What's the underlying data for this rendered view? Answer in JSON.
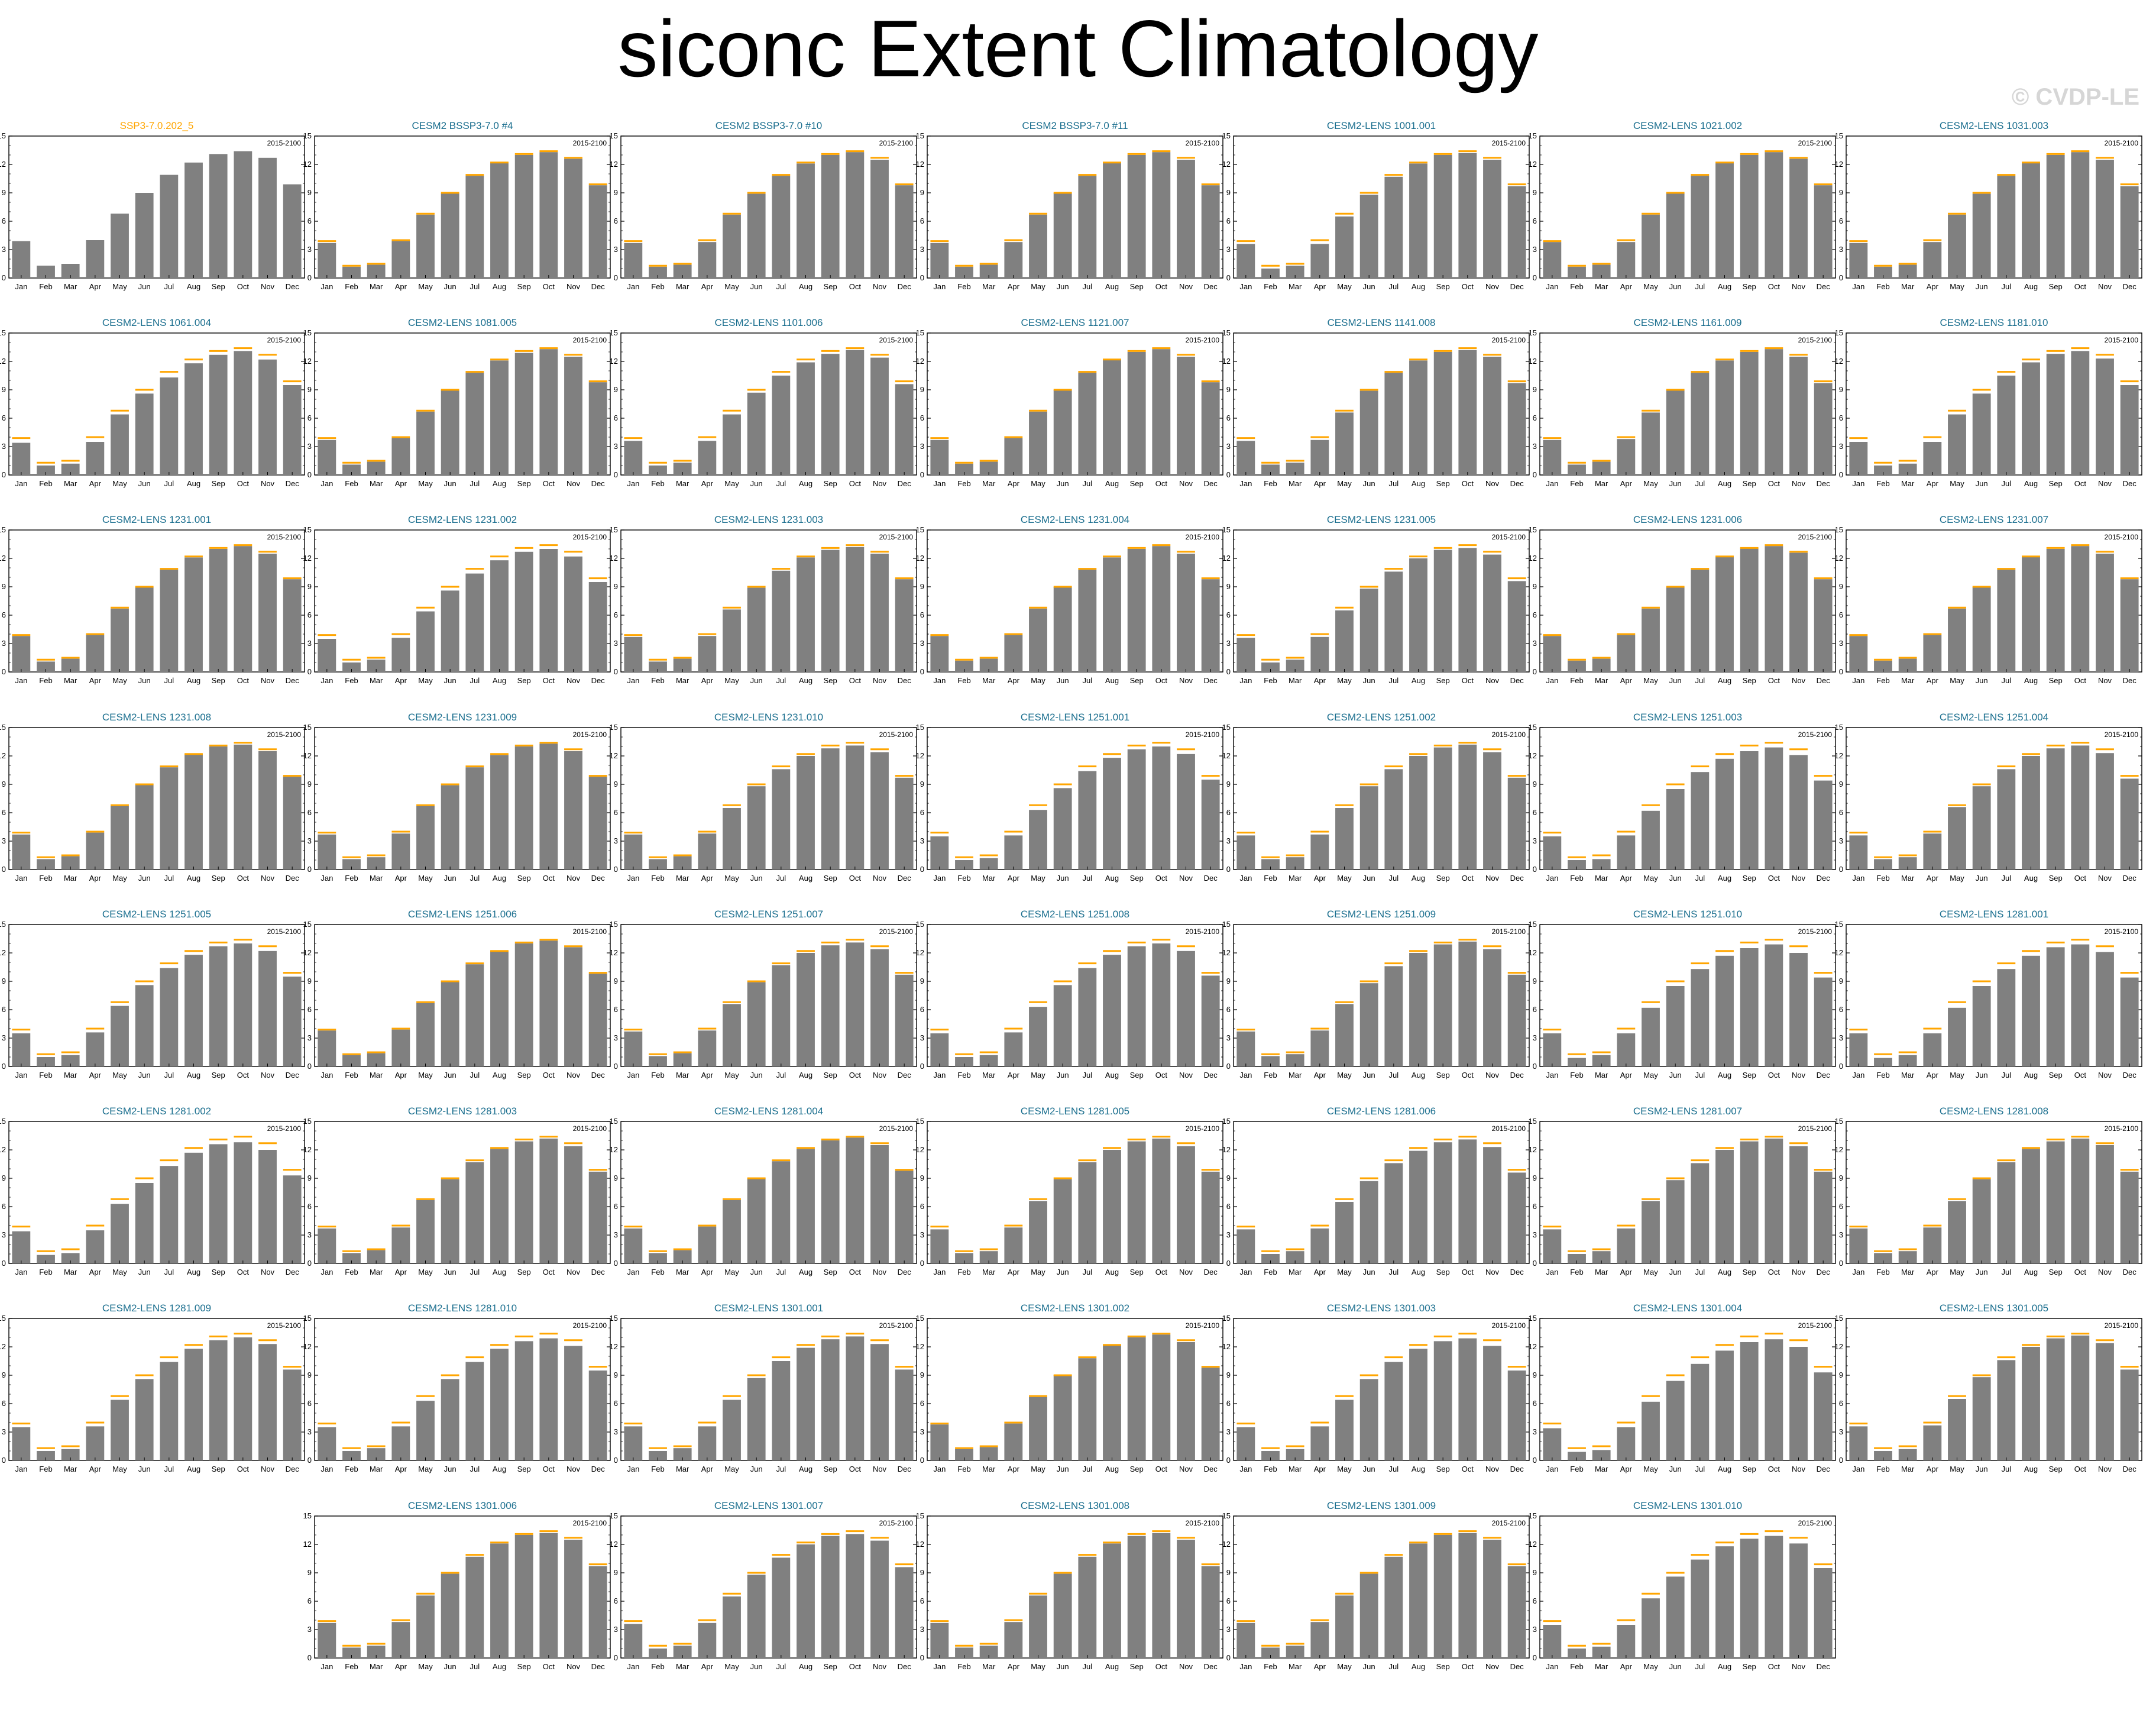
{
  "title": "siconc Extent Climatology",
  "watermark": "© CVDP-LE",
  "colors": {
    "bar": "#808080",
    "reference": "#ffa500",
    "model_title": "#1a6e8e",
    "reference_title": "#ffa500"
  },
  "chart_data": {
    "type": "bar",
    "categories": [
      "Jan",
      "Feb",
      "Mar",
      "Apr",
      "May",
      "Jun",
      "Jul",
      "Aug",
      "Sep",
      "Oct",
      "Nov",
      "Dec"
    ],
    "ylim": [
      0,
      15
    ],
    "yticks": [
      0,
      3,
      6,
      9,
      12,
      15
    ],
    "period_label": "2015-2100",
    "reference_values": [
      3.9,
      1.3,
      1.5,
      4.0,
      6.8,
      9.0,
      10.9,
      12.2,
      13.1,
      13.4,
      12.7,
      9.9
    ],
    "panels": [
      {
        "name": "SSP3-7.0.202_5",
        "values": [
          3.9,
          1.3,
          1.5,
          4.0,
          6.8,
          9.0,
          10.9,
          12.2,
          13.1,
          13.4,
          12.7,
          9.9
        ],
        "is_reference": true
      },
      {
        "name": "CESM2 BSSP3-7.0 #4",
        "values": [
          3.7,
          1.2,
          1.4,
          3.9,
          6.7,
          9.0,
          10.8,
          12.2,
          13.0,
          13.3,
          12.6,
          9.8
        ]
      },
      {
        "name": "CESM2 BSSP3-7.0 #10",
        "values": [
          3.7,
          1.2,
          1.4,
          3.8,
          6.7,
          8.9,
          10.8,
          12.1,
          13.0,
          13.3,
          12.5,
          9.8
        ]
      },
      {
        "name": "CESM2 BSSP3-7.0 #11",
        "values": [
          3.7,
          1.2,
          1.4,
          3.8,
          6.7,
          9.0,
          10.8,
          12.2,
          13.0,
          13.3,
          12.5,
          9.8
        ]
      },
      {
        "name": "CESM2-LENS 1001.001",
        "values": [
          3.6,
          1.0,
          1.3,
          3.6,
          6.5,
          8.8,
          10.7,
          12.1,
          13.0,
          13.2,
          12.5,
          9.7
        ]
      },
      {
        "name": "CESM2-LENS 1021.002",
        "values": [
          3.8,
          1.2,
          1.4,
          3.8,
          6.7,
          9.0,
          10.8,
          12.2,
          13.0,
          13.3,
          12.6,
          9.8
        ]
      },
      {
        "name": "CESM2-LENS 1031.003",
        "values": [
          3.7,
          1.2,
          1.4,
          3.8,
          6.7,
          8.9,
          10.8,
          12.2,
          13.0,
          13.3,
          12.5,
          9.7
        ]
      },
      {
        "name": "CESM2-LENS 1061.004",
        "values": [
          3.4,
          1.0,
          1.2,
          3.5,
          6.4,
          8.6,
          10.3,
          11.8,
          12.7,
          13.1,
          12.2,
          9.5
        ]
      },
      {
        "name": "CESM2-LENS 1081.005",
        "values": [
          3.7,
          1.1,
          1.4,
          3.9,
          6.7,
          9.0,
          10.8,
          12.1,
          12.9,
          13.3,
          12.5,
          9.8
        ]
      },
      {
        "name": "CESM2-LENS 1101.006",
        "values": [
          3.6,
          1.0,
          1.3,
          3.6,
          6.4,
          8.7,
          10.5,
          11.9,
          12.8,
          13.2,
          12.4,
          9.6
        ]
      },
      {
        "name": "CESM2-LENS 1121.007",
        "values": [
          3.7,
          1.2,
          1.4,
          3.9,
          6.7,
          9.0,
          10.8,
          12.2,
          13.0,
          13.3,
          12.5,
          9.8
        ]
      },
      {
        "name": "CESM2-LENS 1141.008",
        "values": [
          3.6,
          1.1,
          1.3,
          3.7,
          6.6,
          8.9,
          10.8,
          12.1,
          13.0,
          13.2,
          12.5,
          9.7
        ]
      },
      {
        "name": "CESM2-LENS 1161.009",
        "values": [
          3.7,
          1.1,
          1.4,
          3.8,
          6.6,
          9.0,
          10.8,
          12.1,
          13.0,
          13.3,
          12.5,
          9.7
        ]
      },
      {
        "name": "CESM2-LENS 1181.010",
        "values": [
          3.5,
          1.0,
          1.2,
          3.5,
          6.4,
          8.6,
          10.5,
          11.9,
          12.8,
          13.1,
          12.3,
          9.5
        ]
      },
      {
        "name": "CESM2-LENS 1231.001",
        "values": [
          3.8,
          1.1,
          1.4,
          3.9,
          6.7,
          9.0,
          10.8,
          12.1,
          13.0,
          13.3,
          12.5,
          9.8
        ]
      },
      {
        "name": "CESM2-LENS 1231.002",
        "values": [
          3.5,
          1.0,
          1.3,
          3.6,
          6.4,
          8.6,
          10.4,
          11.8,
          12.7,
          13.0,
          12.2,
          9.5
        ]
      },
      {
        "name": "CESM2-LENS 1231.003",
        "values": [
          3.7,
          1.1,
          1.4,
          3.8,
          6.6,
          8.9,
          10.7,
          12.1,
          12.9,
          13.2,
          12.5,
          9.8
        ]
      },
      {
        "name": "CESM2-LENS 1231.004",
        "values": [
          3.8,
          1.2,
          1.4,
          3.9,
          6.7,
          9.0,
          10.8,
          12.1,
          13.0,
          13.3,
          12.5,
          9.8
        ]
      },
      {
        "name": "CESM2-LENS 1231.005",
        "values": [
          3.6,
          1.0,
          1.3,
          3.7,
          6.5,
          8.8,
          10.6,
          12.0,
          12.9,
          13.1,
          12.4,
          9.6
        ]
      },
      {
        "name": "CESM2-LENS 1231.006",
        "values": [
          3.8,
          1.2,
          1.4,
          3.9,
          6.7,
          9.0,
          10.8,
          12.2,
          13.1,
          13.3,
          12.6,
          9.8
        ]
      },
      {
        "name": "CESM2-LENS 1231.007",
        "values": [
          3.8,
          1.2,
          1.4,
          3.9,
          6.7,
          9.0,
          10.8,
          12.2,
          13.0,
          13.3,
          12.5,
          9.8
        ]
      },
      {
        "name": "CESM2-LENS 1231.008",
        "values": [
          3.7,
          1.1,
          1.4,
          3.9,
          6.7,
          9.0,
          10.8,
          12.2,
          13.0,
          13.2,
          12.5,
          9.8
        ]
      },
      {
        "name": "CESM2-LENS 1231.009",
        "values": [
          3.7,
          1.1,
          1.3,
          3.8,
          6.7,
          8.9,
          10.8,
          12.1,
          13.0,
          13.3,
          12.5,
          9.8
        ]
      },
      {
        "name": "CESM2-LENS 1231.010",
        "values": [
          3.7,
          1.1,
          1.4,
          3.8,
          6.5,
          8.8,
          10.6,
          12.0,
          12.8,
          13.1,
          12.4,
          9.7
        ]
      },
      {
        "name": "CESM2-LENS 1251.001",
        "values": [
          3.5,
          1.0,
          1.2,
          3.6,
          6.3,
          8.6,
          10.4,
          11.8,
          12.7,
          13.0,
          12.2,
          9.5
        ]
      },
      {
        "name": "CESM2-LENS 1251.002",
        "values": [
          3.6,
          1.1,
          1.3,
          3.7,
          6.5,
          8.8,
          10.6,
          12.0,
          12.9,
          13.2,
          12.4,
          9.7
        ]
      },
      {
        "name": "CESM2-LENS 1251.003",
        "values": [
          3.5,
          1.0,
          1.1,
          3.6,
          6.2,
          8.5,
          10.3,
          11.7,
          12.5,
          12.9,
          12.1,
          9.4
        ]
      },
      {
        "name": "CESM2-LENS 1251.004",
        "values": [
          3.6,
          1.1,
          1.3,
          3.8,
          6.6,
          8.8,
          10.6,
          12.0,
          12.8,
          13.1,
          12.3,
          9.6
        ]
      },
      {
        "name": "CESM2-LENS 1251.005",
        "values": [
          3.5,
          1.0,
          1.2,
          3.6,
          6.4,
          8.6,
          10.4,
          11.8,
          12.7,
          13.0,
          12.2,
          9.5
        ]
      },
      {
        "name": "CESM2-LENS 1251.006",
        "values": [
          3.8,
          1.2,
          1.4,
          3.9,
          6.7,
          9.0,
          10.8,
          12.2,
          13.0,
          13.3,
          12.6,
          9.8
        ]
      },
      {
        "name": "CESM2-LENS 1251.007",
        "values": [
          3.7,
          1.1,
          1.4,
          3.8,
          6.6,
          8.9,
          10.7,
          12.0,
          12.8,
          13.1,
          12.4,
          9.7
        ]
      },
      {
        "name": "CESM2-LENS 1251.008",
        "values": [
          3.5,
          1.0,
          1.2,
          3.6,
          6.3,
          8.6,
          10.4,
          11.8,
          12.7,
          13.0,
          12.2,
          9.6
        ]
      },
      {
        "name": "CESM2-LENS 1251.009",
        "values": [
          3.7,
          1.1,
          1.3,
          3.8,
          6.6,
          8.8,
          10.6,
          12.0,
          12.9,
          13.2,
          12.4,
          9.7
        ]
      },
      {
        "name": "CESM2-LENS 1251.010",
        "values": [
          3.5,
          0.9,
          1.2,
          3.5,
          6.2,
          8.5,
          10.3,
          11.7,
          12.5,
          12.9,
          12.0,
          9.4
        ]
      },
      {
        "name": "CESM2-LENS 1281.001",
        "values": [
          3.5,
          0.9,
          1.2,
          3.5,
          6.2,
          8.5,
          10.3,
          11.7,
          12.6,
          12.9,
          12.1,
          9.4
        ]
      },
      {
        "name": "CESM2-LENS 1281.002",
        "values": [
          3.4,
          0.9,
          1.1,
          3.5,
          6.3,
          8.5,
          10.3,
          11.7,
          12.6,
          12.8,
          12.0,
          9.3
        ]
      },
      {
        "name": "CESM2-LENS 1281.003",
        "values": [
          3.7,
          1.1,
          1.4,
          3.8,
          6.7,
          8.9,
          10.7,
          12.1,
          12.9,
          13.2,
          12.4,
          9.7
        ]
      },
      {
        "name": "CESM2-LENS 1281.004",
        "values": [
          3.7,
          1.1,
          1.4,
          3.9,
          6.7,
          9.0,
          10.8,
          12.1,
          13.0,
          13.3,
          12.5,
          9.8
        ]
      },
      {
        "name": "CESM2-LENS 1281.005",
        "values": [
          3.6,
          1.1,
          1.3,
          3.8,
          6.6,
          8.9,
          10.7,
          12.0,
          12.9,
          13.2,
          12.4,
          9.7
        ]
      },
      {
        "name": "CESM2-LENS 1281.006",
        "values": [
          3.6,
          1.0,
          1.3,
          3.7,
          6.5,
          8.7,
          10.6,
          11.9,
          12.8,
          13.1,
          12.3,
          9.6
        ]
      },
      {
        "name": "CESM2-LENS 1281.007",
        "values": [
          3.6,
          1.0,
          1.3,
          3.7,
          6.6,
          8.8,
          10.6,
          12.0,
          12.9,
          13.2,
          12.4,
          9.7
        ]
      },
      {
        "name": "CESM2-LENS 1281.008",
        "values": [
          3.7,
          1.1,
          1.3,
          3.8,
          6.6,
          8.9,
          10.7,
          12.1,
          12.9,
          13.2,
          12.5,
          9.7
        ]
      },
      {
        "name": "CESM2-LENS 1281.009",
        "values": [
          3.5,
          1.0,
          1.2,
          3.6,
          6.4,
          8.6,
          10.4,
          11.8,
          12.7,
          13.0,
          12.3,
          9.6
        ]
      },
      {
        "name": "CESM2-LENS 1281.010",
        "values": [
          3.5,
          1.0,
          1.3,
          3.6,
          6.3,
          8.6,
          10.4,
          11.8,
          12.6,
          12.9,
          12.1,
          9.5
        ]
      },
      {
        "name": "CESM2-LENS 1301.001",
        "values": [
          3.6,
          1.0,
          1.3,
          3.6,
          6.4,
          8.7,
          10.5,
          11.9,
          12.8,
          13.1,
          12.3,
          9.6
        ]
      },
      {
        "name": "CESM2-LENS 1301.002",
        "values": [
          3.8,
          1.2,
          1.4,
          3.9,
          6.7,
          9.0,
          10.8,
          12.2,
          13.0,
          13.3,
          12.5,
          9.8
        ]
      },
      {
        "name": "CESM2-LENS 1301.003",
        "values": [
          3.5,
          1.0,
          1.2,
          3.6,
          6.4,
          8.6,
          10.4,
          11.8,
          12.6,
          12.9,
          12.1,
          9.5
        ]
      },
      {
        "name": "CESM2-LENS 1301.004",
        "values": [
          3.4,
          0.9,
          1.1,
          3.5,
          6.2,
          8.4,
          10.2,
          11.6,
          12.5,
          12.8,
          12.0,
          9.3
        ]
      },
      {
        "name": "CESM2-LENS 1301.005",
        "values": [
          3.6,
          1.0,
          1.2,
          3.7,
          6.5,
          8.8,
          10.6,
          12.0,
          12.9,
          13.2,
          12.4,
          9.6
        ]
      },
      {
        "name": "CESM2-LENS 1301.006",
        "values": [
          3.7,
          1.1,
          1.3,
          3.8,
          6.6,
          8.9,
          10.7,
          12.1,
          13.0,
          13.2,
          12.5,
          9.7
        ]
      },
      {
        "name": "CESM2-LENS 1301.007",
        "values": [
          3.6,
          1.0,
          1.3,
          3.7,
          6.5,
          8.8,
          10.6,
          12.0,
          12.9,
          13.1,
          12.4,
          9.6
        ]
      },
      {
        "name": "CESM2-LENS 1301.008",
        "values": [
          3.7,
          1.1,
          1.3,
          3.8,
          6.6,
          8.9,
          10.7,
          12.1,
          12.9,
          13.2,
          12.5,
          9.7
        ]
      },
      {
        "name": "CESM2-LENS 1301.009",
        "values": [
          3.7,
          1.1,
          1.3,
          3.8,
          6.6,
          8.9,
          10.7,
          12.1,
          13.0,
          13.2,
          12.5,
          9.7
        ]
      },
      {
        "name": "CESM2-LENS 1301.010",
        "values": [
          3.5,
          1.0,
          1.2,
          3.5,
          6.3,
          8.6,
          10.4,
          11.8,
          12.6,
          12.9,
          12.1,
          9.5
        ]
      }
    ]
  }
}
